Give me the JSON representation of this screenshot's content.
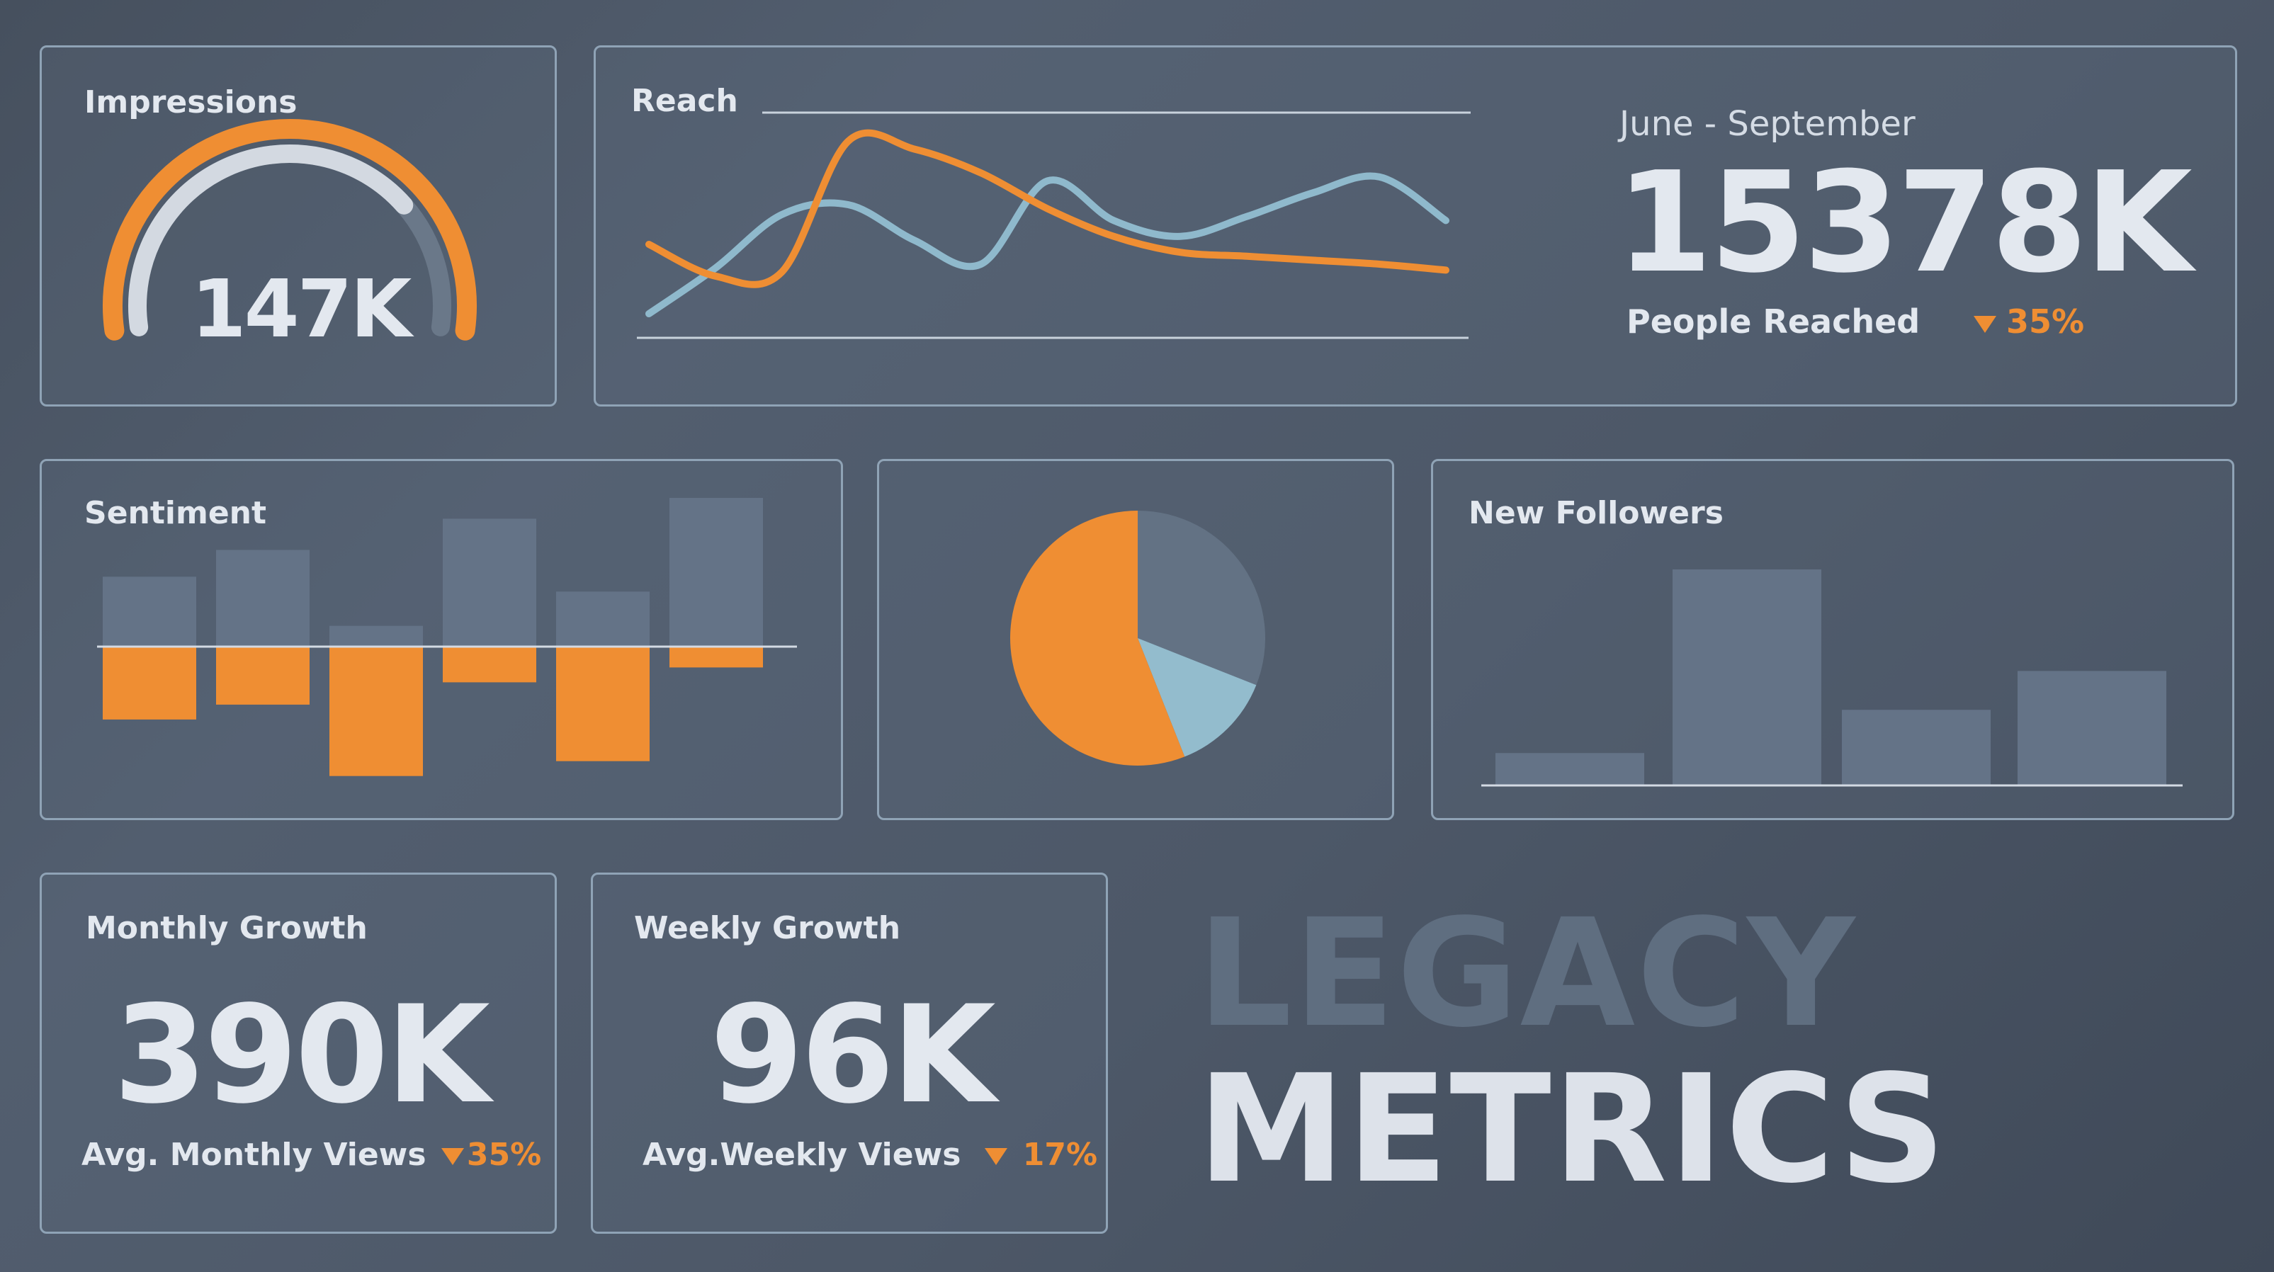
{
  "colors": {
    "accent_orange": "#ef8e33",
    "accent_blue": "#8fb9cc",
    "bar_gray": "#647387",
    "text_light": "#e3e8ef",
    "title_faded": "#5f6e80"
  },
  "impressions": {
    "title": "Impressions",
    "value": "147K"
  },
  "reach": {
    "title": "Reach",
    "period": "June - September",
    "value": "15378K",
    "label": "People Reached",
    "change": "35%"
  },
  "sentiment": {
    "title": "Sentiment"
  },
  "new_followers": {
    "title": "New Followers"
  },
  "monthly_growth": {
    "title": "Monthly Growth",
    "value": "390K",
    "label": "Avg. Monthly Views",
    "change": "35%"
  },
  "weekly_growth": {
    "title": "Weekly Growth",
    "value": "96K",
    "label": "Avg.Weekly Views",
    "change": "17%"
  },
  "page_title": {
    "line1": "LEGACY",
    "line2": "METRICS"
  },
  "chart_data": [
    {
      "id": "impressions-gauge",
      "type": "gauge",
      "title": "Impressions",
      "value_label": "147K",
      "fill_fraction": 0.85
    },
    {
      "id": "reach-lines",
      "type": "line",
      "title": "Reach",
      "x": [
        0,
        1,
        2,
        3,
        4,
        5,
        6,
        7,
        8,
        9,
        10,
        11,
        12
      ],
      "series": [
        {
          "name": "series-blue",
          "color": "#8fb9cc",
          "values": [
            5,
            28,
            55,
            60,
            42,
            30,
            72,
            52,
            44,
            54,
            66,
            74,
            52
          ]
        },
        {
          "name": "series-orange",
          "color": "#ef8e33",
          "values": [
            40,
            24,
            26,
            92,
            88,
            76,
            58,
            44,
            36,
            34,
            32,
            30,
            27
          ]
        }
      ],
      "ylim": [
        0,
        100
      ]
    },
    {
      "id": "sentiment-bars",
      "type": "bar",
      "title": "Sentiment",
      "categories": [
        "1",
        "2",
        "3",
        "4",
        "5",
        "6"
      ],
      "series": [
        {
          "name": "positive",
          "color": "#647387",
          "values": [
            47,
            65,
            14,
            86,
            37,
            100
          ]
        },
        {
          "name": "negative",
          "color": "#ef8e33",
          "values": [
            -49,
            -39,
            -87,
            -24,
            -77,
            -14
          ]
        }
      ],
      "ylim": [
        -100,
        100
      ]
    },
    {
      "id": "share-pie",
      "type": "pie",
      "slices": [
        {
          "name": "gray",
          "value": 31,
          "color": "#637284"
        },
        {
          "name": "blue",
          "value": 13,
          "color": "#93bccd"
        },
        {
          "name": "orange",
          "value": 56,
          "color": "#ef8e33"
        }
      ]
    },
    {
      "id": "followers-bars",
      "type": "bar",
      "title": "New Followers",
      "categories": [
        "1",
        "2",
        "3",
        "4"
      ],
      "values": [
        15,
        100,
        35,
        53
      ],
      "ylim": [
        0,
        100
      ]
    }
  ]
}
